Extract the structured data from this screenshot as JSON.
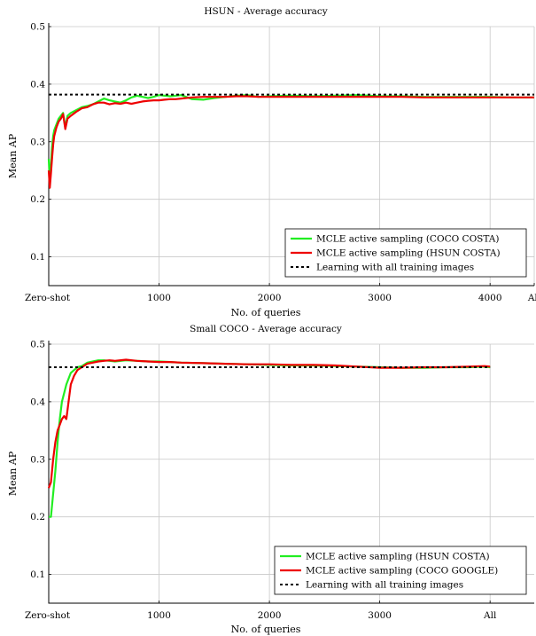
{
  "chart_data": [
    {
      "type": "line",
      "title": "HSUN - Average accuracy",
      "xlabel": "No. of queries",
      "ylabel": "Mean AP",
      "xlim": [
        0,
        4400
      ],
      "ylim": [
        0.05,
        0.5
      ],
      "x_ticks": [
        {
          "value": 0,
          "label": "Zero-shot"
        },
        {
          "value": 1000,
          "label": "1000"
        },
        {
          "value": 2000,
          "label": "2000"
        },
        {
          "value": 3000,
          "label": "3000"
        },
        {
          "value": 4000,
          "label": "4000"
        },
        {
          "value": 4400,
          "label": "All"
        }
      ],
      "y_ticks": [
        {
          "value": 0.1,
          "label": "0.1"
        },
        {
          "value": 0.2,
          "label": "0.2"
        },
        {
          "value": 0.3,
          "label": "0.3"
        },
        {
          "value": 0.4,
          "label": "0.4"
        },
        {
          "value": 0.5,
          "label": "0.5"
        }
      ],
      "grid": true,
      "legend_position": "bottom-right",
      "series": [
        {
          "name": "MCLE active sampling (COCO COSTA)",
          "color": "#22ee22",
          "style": "solid",
          "x": [
            0,
            10,
            20,
            30,
            40,
            50,
            70,
            90,
            110,
            130,
            150,
            170,
            200,
            250,
            300,
            350,
            400,
            450,
            500,
            550,
            600,
            650,
            700,
            750,
            800,
            850,
            900,
            950,
            1000,
            1050,
            1100,
            1150,
            1200,
            1300,
            1400,
            1500,
            1600,
            1700,
            1800,
            1900,
            2000,
            2200,
            2400,
            2600,
            2800,
            3000,
            3200,
            3400,
            3600,
            3800,
            4000,
            4200,
            4400
          ],
          "y": [
            0.27,
            0.23,
            0.26,
            0.29,
            0.31,
            0.32,
            0.33,
            0.34,
            0.345,
            0.35,
            0.325,
            0.345,
            0.35,
            0.355,
            0.36,
            0.362,
            0.365,
            0.37,
            0.375,
            0.372,
            0.37,
            0.368,
            0.372,
            0.377,
            0.38,
            0.378,
            0.376,
            0.378,
            0.381,
            0.38,
            0.379,
            0.38,
            0.381,
            0.374,
            0.373,
            0.376,
            0.378,
            0.38,
            0.381,
            0.378,
            0.379,
            0.38,
            0.379,
            0.38,
            0.381,
            0.379,
            0.379,
            0.378,
            0.378,
            0.378,
            0.378,
            0.377,
            0.377
          ]
        },
        {
          "name": "MCLE active sampling (HSUN COSTA)",
          "color": "#ee0000",
          "style": "solid",
          "x": [
            0,
            10,
            20,
            30,
            40,
            50,
            70,
            90,
            110,
            130,
            150,
            170,
            200,
            250,
            300,
            350,
            400,
            450,
            500,
            550,
            600,
            650,
            700,
            750,
            800,
            850,
            900,
            950,
            1000,
            1050,
            1100,
            1150,
            1200,
            1300,
            1400,
            1500,
            1600,
            1700,
            1800,
            1900,
            2000,
            2200,
            2400,
            2600,
            2800,
            3000,
            3200,
            3400,
            3600,
            3800,
            4000,
            4200,
            4400
          ],
          "y": [
            0.25,
            0.22,
            0.245,
            0.27,
            0.295,
            0.31,
            0.325,
            0.335,
            0.34,
            0.348,
            0.322,
            0.34,
            0.345,
            0.352,
            0.358,
            0.36,
            0.365,
            0.368,
            0.368,
            0.365,
            0.367,
            0.366,
            0.368,
            0.366,
            0.368,
            0.37,
            0.371,
            0.372,
            0.372,
            0.373,
            0.374,
            0.374,
            0.375,
            0.377,
            0.378,
            0.378,
            0.378,
            0.379,
            0.379,
            0.378,
            0.378,
            0.378,
            0.378,
            0.378,
            0.378,
            0.378,
            0.378,
            0.377,
            0.377,
            0.377,
            0.377,
            0.377,
            0.377
          ]
        },
        {
          "name": "Learning with all training images",
          "color": "#000000",
          "style": "dotted",
          "x": [
            0,
            4400
          ],
          "y": [
            0.382,
            0.382
          ]
        }
      ]
    },
    {
      "type": "line",
      "title": "Small COCO - Average accuracy",
      "xlabel": "No. of queries",
      "ylabel": "Mean AP",
      "xlim": [
        0,
        4400
      ],
      "ylim": [
        0.05,
        0.5
      ],
      "x_ticks": [
        {
          "value": 0,
          "label": "Zero-shot"
        },
        {
          "value": 1000,
          "label": "1000"
        },
        {
          "value": 2000,
          "label": "2000"
        },
        {
          "value": 3000,
          "label": "3000"
        },
        {
          "value": 4000,
          "label": "All"
        }
      ],
      "y_ticks": [
        {
          "value": 0.1,
          "label": "0.1"
        },
        {
          "value": 0.2,
          "label": "0.2"
        },
        {
          "value": 0.3,
          "label": "0.3"
        },
        {
          "value": 0.4,
          "label": "0.4"
        },
        {
          "value": 0.5,
          "label": "0.5"
        }
      ],
      "grid": true,
      "legend_position": "bottom-right",
      "series": [
        {
          "name": "MCLE active sampling (HSUN COSTA)",
          "color": "#22ee22",
          "style": "solid",
          "x": [
            0,
            20,
            40,
            60,
            80,
            100,
            120,
            140,
            160,
            180,
            200,
            230,
            260,
            300,
            350,
            400,
            450,
            500,
            550,
            600,
            700,
            800,
            900,
            1000,
            1100,
            1200,
            1400,
            1600,
            1800,
            2000,
            2200,
            2400,
            2600,
            2800,
            3000,
            3200,
            3400,
            3600,
            3800,
            3950,
            4000
          ],
          "y": [
            0.2,
            0.2,
            0.24,
            0.28,
            0.33,
            0.37,
            0.4,
            0.415,
            0.43,
            0.44,
            0.45,
            0.455,
            0.46,
            0.462,
            0.468,
            0.47,
            0.472,
            0.472,
            0.471,
            0.47,
            0.472,
            0.471,
            0.47,
            0.47,
            0.469,
            0.468,
            0.467,
            0.466,
            0.465,
            0.464,
            0.463,
            0.463,
            0.462,
            0.461,
            0.46,
            0.459,
            0.459,
            0.46,
            0.46,
            0.461,
            0.46
          ]
        },
        {
          "name": "MCLE active sampling (COCO GOOGLE)",
          "color": "#ee0000",
          "style": "solid",
          "x": [
            0,
            20,
            40,
            60,
            80,
            100,
            120,
            140,
            160,
            180,
            200,
            230,
            260,
            300,
            350,
            400,
            450,
            500,
            550,
            600,
            700,
            800,
            900,
            1000,
            1100,
            1200,
            1400,
            1600,
            1800,
            2000,
            2200,
            2400,
            2600,
            2800,
            3000,
            3200,
            3400,
            3600,
            3800,
            3950,
            4000
          ],
          "y": [
            0.25,
            0.26,
            0.3,
            0.33,
            0.35,
            0.36,
            0.37,
            0.375,
            0.37,
            0.4,
            0.43,
            0.445,
            0.455,
            0.46,
            0.466,
            0.468,
            0.47,
            0.471,
            0.472,
            0.471,
            0.473,
            0.471,
            0.47,
            0.469,
            0.469,
            0.468,
            0.467,
            0.466,
            0.465,
            0.465,
            0.464,
            0.464,
            0.463,
            0.461,
            0.459,
            0.459,
            0.46,
            0.46,
            0.461,
            0.462,
            0.461
          ]
        },
        {
          "name": "Learning with all training images",
          "color": "#000000",
          "style": "dotted",
          "x": [
            0,
            4000
          ],
          "y": [
            0.46,
            0.46
          ]
        }
      ]
    }
  ]
}
